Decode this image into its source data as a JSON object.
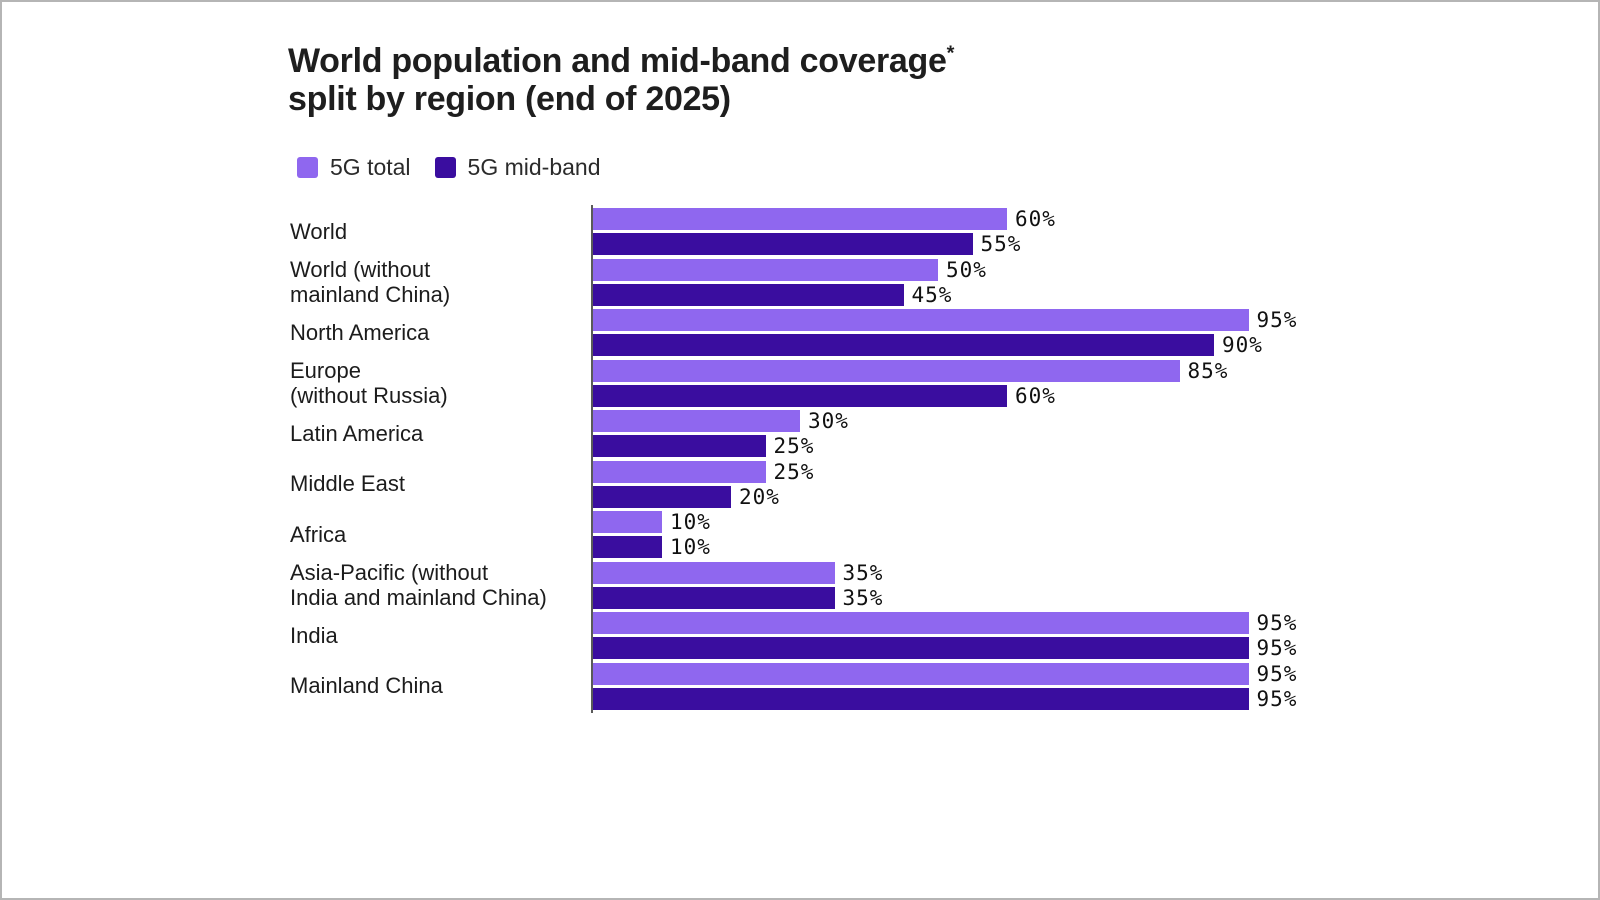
{
  "title": {
    "line1": "World population and mid-band coverage",
    "superscript": "*",
    "line2": "split by region (end of 2025)"
  },
  "colors": {
    "series_5g_total": "#8F67EF",
    "series_5g_midband": "#3A0D9F",
    "axis": "#5a5a5a",
    "text": "#1c1c1c"
  },
  "chart_data": {
    "type": "bar",
    "orientation": "horizontal",
    "title": "World population and mid-band coverage* split by region (end of 2025)",
    "unit": "%",
    "xlim": [
      0,
      100
    ],
    "grid": false,
    "legend_position": "top-left",
    "categories": [
      "World",
      "World (without\nmainland China)",
      "North America",
      "Europe\n(without Russia)",
      "Latin America",
      "Middle East",
      "Africa",
      "Asia-Pacific (without\nIndia and mainland China)",
      "India",
      "Mainland China"
    ],
    "series": [
      {
        "name": "5G total",
        "color": "#8F67EF",
        "values": [
          60,
          50,
          95,
          85,
          30,
          25,
          10,
          35,
          95,
          95
        ]
      },
      {
        "name": "5G mid-band",
        "color": "#3A0D9F",
        "values": [
          55,
          45,
          90,
          60,
          25,
          20,
          10,
          35,
          95,
          95
        ]
      }
    ]
  }
}
